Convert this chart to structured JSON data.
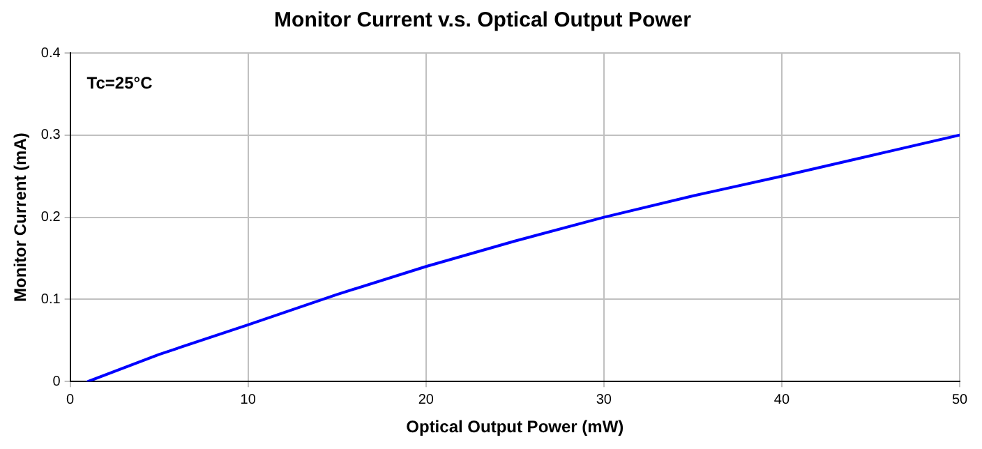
{
  "chart_data": {
    "type": "line",
    "title": "Monitor Current v.s. Optical Output Power",
    "xlabel": "Optical Output Power (mW)",
    "ylabel": "Monitor Current (mA)",
    "annotations": [
      "Tc=25°C"
    ],
    "x": [
      1,
      5,
      10,
      15,
      20,
      25,
      30,
      35,
      40,
      45,
      50
    ],
    "series": [
      {
        "color": "#0000ff",
        "values": [
          0,
          0.033,
          0.069,
          0.106,
          0.14,
          0.171,
          0.2,
          0.226,
          0.25,
          0.275,
          0.3
        ]
      }
    ],
    "xlim": [
      0,
      50
    ],
    "xticks": [
      0,
      10,
      20,
      30,
      40,
      50
    ],
    "ylim": [
      0,
      0.4
    ],
    "yticks": [
      0,
      0.1,
      0.2,
      0.3,
      0.4
    ],
    "grid": true,
    "legend": false,
    "marker": "none",
    "line_style": "solid"
  }
}
